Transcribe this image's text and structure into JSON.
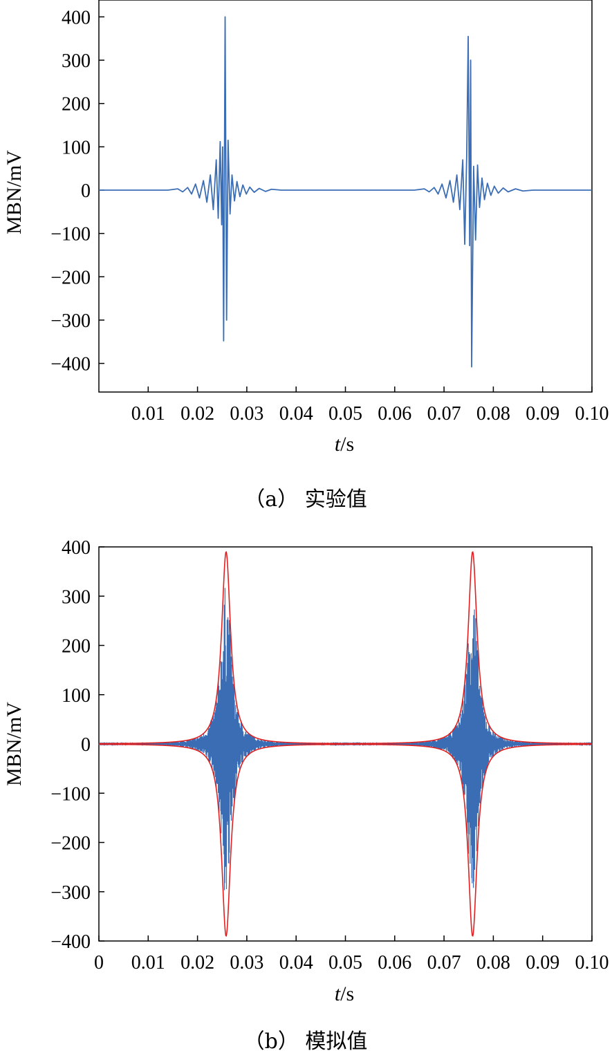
{
  "chart_data": [
    {
      "type": "line",
      "caption": "（a） 实验值",
      "xlabel_italic": "t",
      "xlabel_unit": "/s",
      "ylabel": "MBN/mV",
      "xlim": [
        0,
        0.1
      ],
      "ylim": [
        -460,
        440
      ],
      "xticks": [
        "0.01",
        "0.02",
        "0.03",
        "0.04",
        "0.05",
        "0.06",
        "0.07",
        "0.08",
        "0.09",
        "0.10"
      ],
      "xtick_values": [
        0.01,
        0.02,
        0.03,
        0.04,
        0.05,
        0.06,
        0.07,
        0.08,
        0.09,
        0.1
      ],
      "yticks": [
        "400",
        "300",
        "200",
        "100",
        "0",
        "−100",
        "−200",
        "−300",
        "−400"
      ],
      "ytick_values": [
        400,
        300,
        200,
        100,
        0,
        -100,
        -200,
        -300,
        -400
      ],
      "grid": false,
      "series": [
        {
          "color": "#3a6db4",
          "points": [
            [
              0.0,
              0
            ],
            [
              0.014,
              0
            ],
            [
              0.016,
              3
            ],
            [
              0.017,
              -4
            ],
            [
              0.018,
              6
            ],
            [
              0.0188,
              -9
            ],
            [
              0.0196,
              14
            ],
            [
              0.0204,
              -18
            ],
            [
              0.0212,
              22
            ],
            [
              0.0219,
              -28
            ],
            [
              0.0226,
              35
            ],
            [
              0.0232,
              -45
            ],
            [
              0.0238,
              70
            ],
            [
              0.0242,
              -65
            ],
            [
              0.0246,
              112
            ],
            [
              0.0249,
              -80
            ],
            [
              0.0251,
              100
            ],
            [
              0.0253,
              -348
            ],
            [
              0.0256,
              400
            ],
            [
              0.0259,
              -300
            ],
            [
              0.0262,
              115
            ],
            [
              0.0266,
              -55
            ],
            [
              0.027,
              35
            ],
            [
              0.0275,
              -25
            ],
            [
              0.028,
              20
            ],
            [
              0.0286,
              -15
            ],
            [
              0.0292,
              12
            ],
            [
              0.0299,
              -9
            ],
            [
              0.0306,
              7
            ],
            [
              0.0315,
              -5
            ],
            [
              0.0325,
              4
            ],
            [
              0.0338,
              -3
            ],
            [
              0.035,
              2
            ],
            [
              0.037,
              0
            ],
            [
              0.064,
              0
            ],
            [
              0.066,
              3
            ],
            [
              0.067,
              -4
            ],
            [
              0.068,
              6
            ],
            [
              0.0688,
              -9
            ],
            [
              0.0696,
              14
            ],
            [
              0.0704,
              -18
            ],
            [
              0.0712,
              22
            ],
            [
              0.0719,
              -28
            ],
            [
              0.0726,
              35
            ],
            [
              0.0732,
              -45
            ],
            [
              0.0738,
              70
            ],
            [
              0.0742,
              -125
            ],
            [
              0.0746,
              80
            ],
            [
              0.0749,
              355
            ],
            [
              0.0752,
              -128
            ],
            [
              0.0754,
              300
            ],
            [
              0.0756,
              -408
            ],
            [
              0.076,
              55
            ],
            [
              0.0764,
              -115
            ],
            [
              0.0768,
              58
            ],
            [
              0.0772,
              -40
            ],
            [
              0.0777,
              28
            ],
            [
              0.0782,
              -22
            ],
            [
              0.0788,
              16
            ],
            [
              0.0795,
              -12
            ],
            [
              0.0802,
              9
            ],
            [
              0.081,
              -7
            ],
            [
              0.082,
              5
            ],
            [
              0.083,
              -4
            ],
            [
              0.0845,
              3
            ],
            [
              0.086,
              -2
            ],
            [
              0.088,
              0
            ],
            [
              0.1,
              0
            ]
          ]
        }
      ]
    },
    {
      "type": "line",
      "caption": "（b） 模拟值",
      "xlabel_italic": "t",
      "xlabel_unit": "/s",
      "ylabel": "MBN/mV",
      "xlim": [
        0,
        0.1
      ],
      "ylim": [
        -400,
        400
      ],
      "xticks": [
        "0",
        "0.01",
        "0.02",
        "0.03",
        "0.04",
        "0.05",
        "0.06",
        "0.07",
        "0.08",
        "0.09",
        "0.10"
      ],
      "xtick_values": [
        0,
        0.01,
        0.02,
        0.03,
        0.04,
        0.05,
        0.06,
        0.07,
        0.08,
        0.09,
        0.1
      ],
      "yticks": [
        "400",
        "300",
        "200",
        "100",
        "0",
        "−100",
        "−200",
        "−300",
        "−400"
      ],
      "ytick_values": [
        400,
        300,
        200,
        100,
        0,
        -100,
        -200,
        -300,
        -400
      ],
      "grid": false,
      "series": [
        {
          "color": "#3a6db4",
          "style": "noise-burst",
          "centers": [
            0.0258,
            0.0758
          ],
          "peak_amplitude": 330,
          "burst_halfwidth": 0.0022
        },
        {
          "color": "#e02020",
          "style": "envelope",
          "centers": [
            0.0258,
            0.0758
          ],
          "peak": 390,
          "halfwidth": 0.0011
        }
      ]
    }
  ]
}
